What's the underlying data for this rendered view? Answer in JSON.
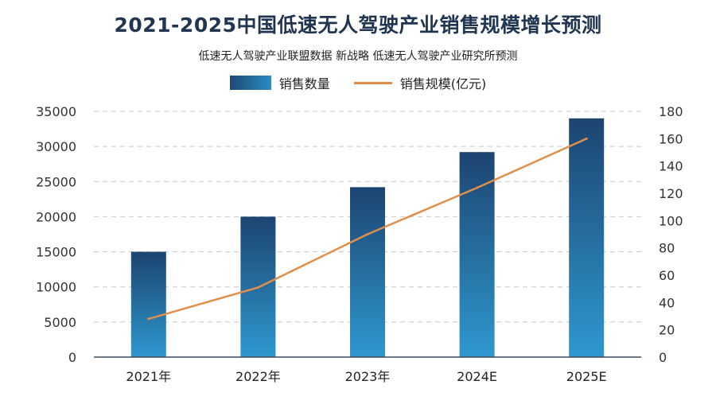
{
  "header": {
    "title": "2021-2025中国低速无人驾驶产业销售规模增长预测",
    "subtitle": "低速无人驾驶产业联盟数据 新战略 低速无人驾驶产业研究所预测"
  },
  "colors": {
    "bar_top": "#1d4470",
    "bar_bottom": "#2e98cf",
    "line": "#e08f4a",
    "grid": "#c8c8c8",
    "title": "#1f3550"
  },
  "chart_data": {
    "type": "bar",
    "title": "2021-2025中国低速无人驾驶产业销售规模增长预测",
    "categories": [
      "2021年",
      "2022年",
      "2023年",
      "2024E",
      "2025E"
    ],
    "series": [
      {
        "name": "销售数量",
        "type": "bar",
        "axis": "left",
        "values": [
          15000,
          20000,
          24200,
          29200,
          34000
        ]
      },
      {
        "name": "销售规模(亿元)",
        "type": "line",
        "axis": "right",
        "values": [
          28,
          51,
          90,
          124,
          160
        ]
      }
    ],
    "y_left": {
      "min": 0,
      "max": 35000,
      "ticks": [
        "0",
        "5000",
        "10000",
        "15000",
        "20000",
        "25000",
        "30000",
        "35000"
      ]
    },
    "y_right": {
      "min": 0,
      "max": 180,
      "ticks": [
        "0",
        "20",
        "40",
        "60",
        "80",
        "100",
        "120",
        "140",
        "160",
        "180"
      ]
    },
    "grid": true,
    "legend_position": "top-center"
  }
}
